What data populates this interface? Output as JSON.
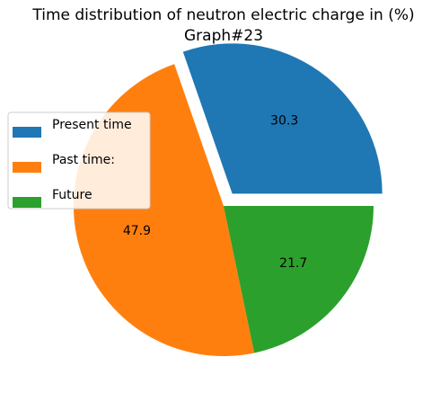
{
  "chart_data": {
    "type": "pie",
    "title": "Time distribution of neutron electric charge in (%)",
    "subtitle": "Graph#23",
    "labels": [
      "Present time",
      "Past time:",
      "Future"
    ],
    "values": [
      30.3,
      47.9,
      21.7
    ],
    "value_labels": [
      "30.3",
      "47.9",
      "21.7"
    ],
    "colors": [
      "#1f77b4",
      "#ff7f0e",
      "#2ca02c"
    ],
    "explode": [
      0.1,
      0,
      0
    ],
    "start_angle_deg": 0,
    "direction": "counterclockwise",
    "legend_position": "center-left"
  }
}
